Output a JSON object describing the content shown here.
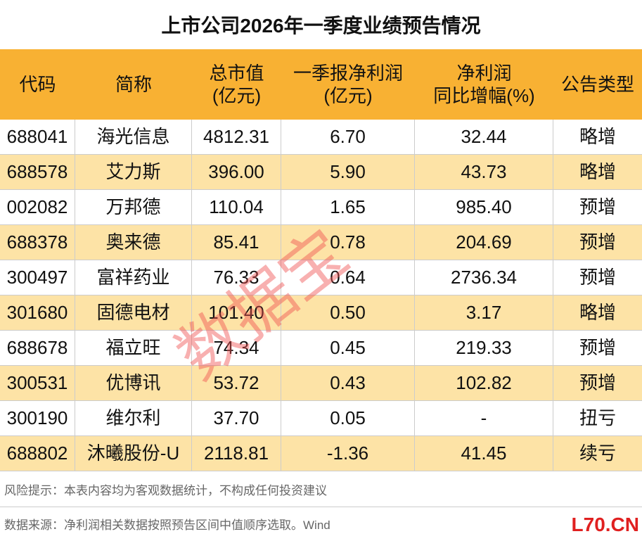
{
  "header": {
    "title": "上市公司2026年一季度业绩预告情况"
  },
  "table": {
    "columns": [
      [
        "代码"
      ],
      [
        "简称"
      ],
      [
        "总市值",
        "(亿元)"
      ],
      [
        "一季报净利润",
        "(亿元)"
      ],
      [
        "净利润",
        "同比增幅(%)"
      ],
      [
        "公告类型"
      ]
    ],
    "rows": [
      [
        "688041",
        "海光信息",
        "4812.31",
        "6.70",
        "32.44",
        "略增"
      ],
      [
        "688578",
        "艾力斯",
        "396.00",
        "5.90",
        "43.73",
        "略增"
      ],
      [
        "002082",
        "万邦德",
        "110.04",
        "1.65",
        "985.40",
        "预增"
      ],
      [
        "688378",
        "奥来德",
        "85.41",
        "0.78",
        "204.69",
        "预增"
      ],
      [
        "300497",
        "富祥药业",
        "76.33",
        "0.64",
        "2736.34",
        "预增"
      ],
      [
        "301680",
        "固德电材",
        "101.40",
        "0.50",
        "3.17",
        "略增"
      ],
      [
        "688678",
        "福立旺",
        "74.34",
        "0.45",
        "219.33",
        "预增"
      ],
      [
        "300531",
        "优博讯",
        "53.72",
        "0.43",
        "102.82",
        "预增"
      ],
      [
        "300190",
        "维尔利",
        "37.70",
        "0.05",
        "-",
        "扭亏"
      ],
      [
        "688802",
        "沐曦股份-U",
        "2118.81",
        "-1.36",
        "41.45",
        "续亏"
      ]
    ]
  },
  "notes": [
    "风险提示：本表内容均为客观数据统计，不构成任何投资建议",
    "数据来源：净利润相关数据按照预告区间中值顺序选取。Wind"
  ],
  "watermark": "数据宝",
  "logo": "L70.CN"
}
